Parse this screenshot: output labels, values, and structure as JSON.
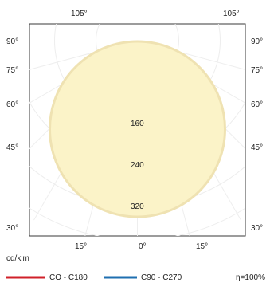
{
  "chart_data": {
    "type": "polar",
    "unit": "cd/klm",
    "efficiency": "η=100%",
    "top_tick_labels": [
      "105°",
      "105°"
    ],
    "left_tick_labels": [
      "90°",
      "75°",
      "60°",
      "45°",
      "30°"
    ],
    "right_tick_labels": [
      "90°",
      "75°",
      "60°",
      "45°",
      "30°"
    ],
    "bottom_tick_labels": [
      "15°",
      "0°",
      "15°"
    ],
    "radial_labels": [
      "160",
      "240",
      "320"
    ],
    "series": [
      {
        "name": "CO - C180",
        "color": "#d0202a"
      },
      {
        "name": "C90 - C270",
        "color": "#1f6fb0"
      }
    ],
    "fill_color": "#fbf3c8",
    "fill_edge_color": "#efe2b2",
    "grid": true
  }
}
